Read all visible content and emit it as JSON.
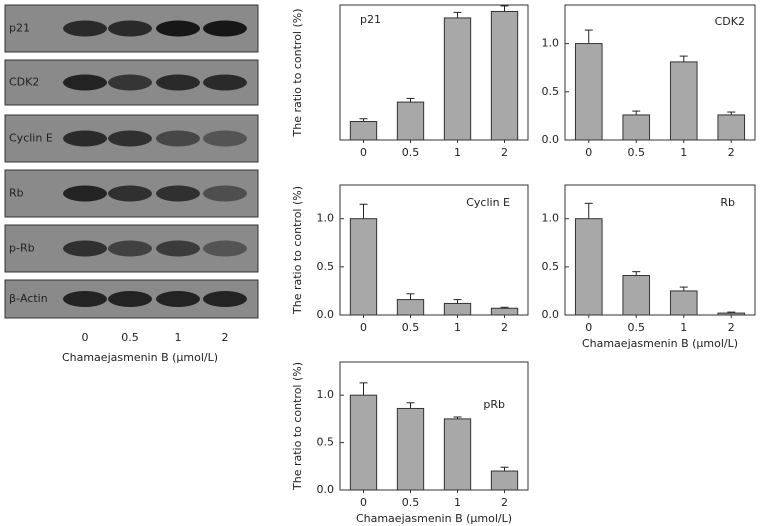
{
  "blot": {
    "rows": [
      "p21",
      "CDK2",
      "Cyclin E",
      "Rb",
      "p-Rb",
      "β-Actin"
    ],
    "lanes": [
      "0",
      "0.5",
      "1",
      "2"
    ],
    "xlabel": "Chamaejasmenin B (μmol/L)"
  },
  "chart_data": [
    {
      "type": "bar",
      "title": "p21",
      "ylabel": "The ratio to control (%)",
      "categories": [
        "0",
        "0.5",
        "1",
        "2"
      ],
      "values": [
        1,
        2.05,
        6.6,
        6.95
      ],
      "errors": [
        0.15,
        0.2,
        0.3,
        0.3
      ],
      "color": "#a8a8a8",
      "ylim": [
        0,
        7.3
      ]
    },
    {
      "type": "bar",
      "title": "CDK2",
      "categories": [
        "0",
        "0.5",
        "1",
        "2"
      ],
      "values": [
        1.0,
        0.26,
        0.81,
        0.26
      ],
      "errors": [
        0.14,
        0.04,
        0.06,
        0.03
      ],
      "color": "#a8a8a8",
      "ylim": [
        0,
        1.4
      ],
      "yticks": [
        {
          "value": 0,
          "label": "0.0"
        },
        0.5,
        {
          "value": 1,
          "label": "1.0"
        }
      ]
    },
    {
      "type": "bar",
      "title": "Cyclin E",
      "ylabel": "The ratio to control (%)",
      "categories": [
        "0",
        "0.5",
        "1",
        "2"
      ],
      "values": [
        1.0,
        0.16,
        0.12,
        0.07
      ],
      "errors": [
        0.15,
        0.06,
        0.04,
        0.01
      ],
      "color": "#a8a8a8",
      "ylim": [
        0,
        1.35
      ],
      "yticks": [
        {
          "value": 0,
          "label": "0.0"
        },
        0.5,
        {
          "value": 1,
          "label": "1.0"
        }
      ]
    },
    {
      "type": "bar",
      "title": "Rb",
      "xlabel": "Chamaejasmenin B (μmol/L)",
      "categories": [
        "0",
        "0.5",
        "1",
        "2"
      ],
      "values": [
        1.0,
        0.41,
        0.25,
        0.02
      ],
      "errors": [
        0.16,
        0.04,
        0.04,
        0.01
      ],
      "color": "#a8a8a8",
      "ylim": [
        0,
        1.35
      ],
      "yticks": [
        {
          "value": 0,
          "label": "0.0"
        },
        0.5,
        {
          "value": 1,
          "label": "1.0"
        }
      ]
    },
    {
      "type": "bar",
      "title": "pRb",
      "ylabel": "The ratio to control (%)",
      "xlabel": "Chamaejasmenin B (μmol/L)",
      "categories": [
        "0",
        "0.5",
        "1",
        "2"
      ],
      "values": [
        1.0,
        0.86,
        0.75,
        0.2
      ],
      "errors": [
        0.13,
        0.06,
        0.02,
        0.04
      ],
      "color": "#a8a8a8",
      "ylim": [
        0,
        1.35
      ],
      "yticks": [
        {
          "value": 0,
          "label": "0.0"
        },
        0.5,
        {
          "value": 1,
          "label": "1.0"
        }
      ]
    }
  ]
}
